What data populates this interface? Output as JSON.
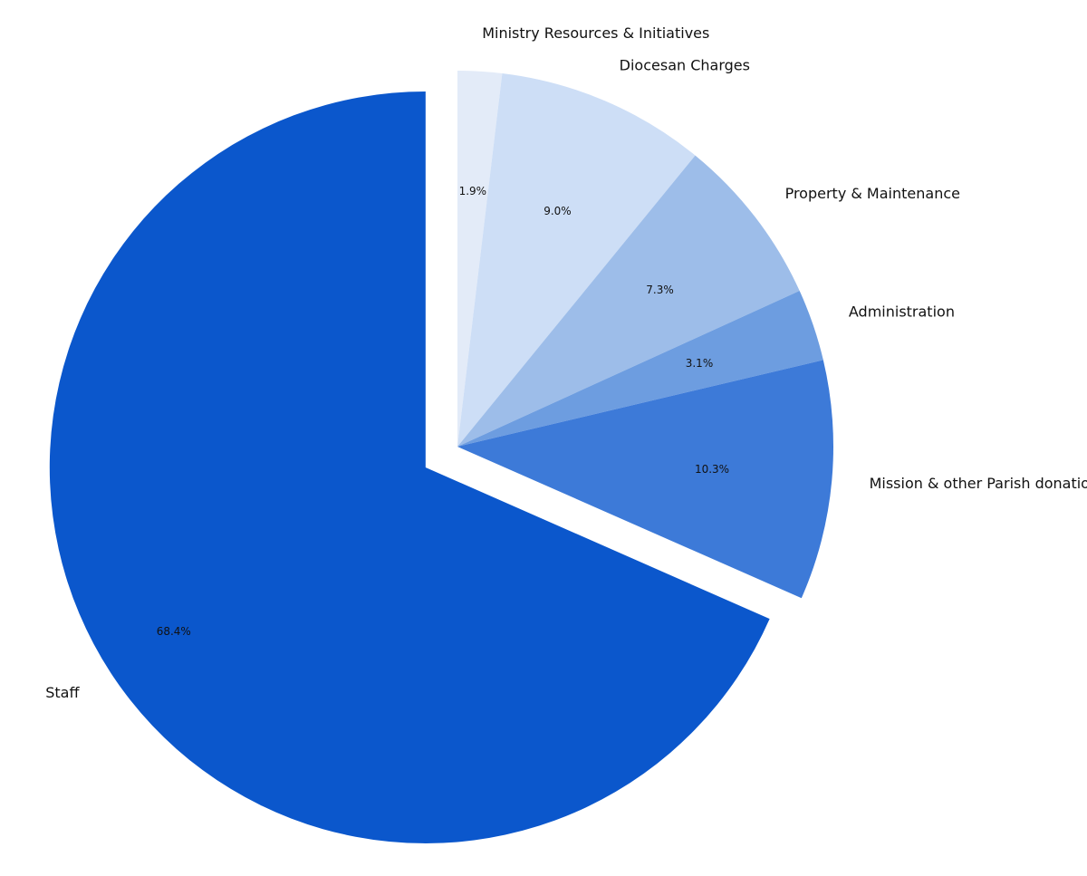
{
  "chart_data": {
    "type": "pie",
    "categories": [
      "Ministry Resources & Initiatives",
      "Diocesan Charges",
      "Property & Maintenance",
      "Administration",
      "Mission & other Parish donations",
      "Staff"
    ],
    "values": [
      1.9,
      9.0,
      7.3,
      3.1,
      10.3,
      68.4
    ],
    "value_labels": [
      "1.9%",
      "9.0%",
      "7.3%",
      "3.1%",
      "10.3%",
      "68.4%"
    ],
    "colors": [
      "#e3ebf8",
      "#cddef6",
      "#9dbde9",
      "#6d9de0",
      "#3d7ad8",
      "#0b57cc"
    ]
  }
}
